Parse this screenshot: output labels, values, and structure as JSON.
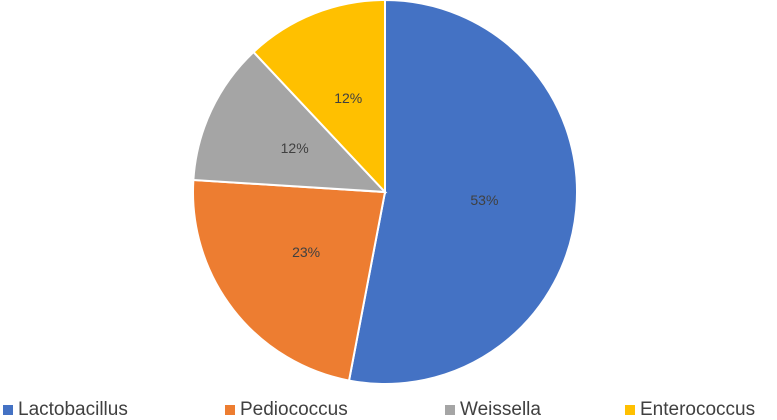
{
  "chart_data": {
    "type": "pie",
    "categories": [
      "Lactobacillus",
      "Pediococcus",
      "Weissella",
      "Enterococcus"
    ],
    "values": [
      53,
      23,
      12,
      12
    ],
    "value_labels": [
      "53%",
      "23%",
      "12%",
      "12%"
    ],
    "colors": [
      "#4472c4",
      "#ed7d31",
      "#a5a5a5",
      "#ffc000"
    ],
    "legend": "bottom"
  }
}
